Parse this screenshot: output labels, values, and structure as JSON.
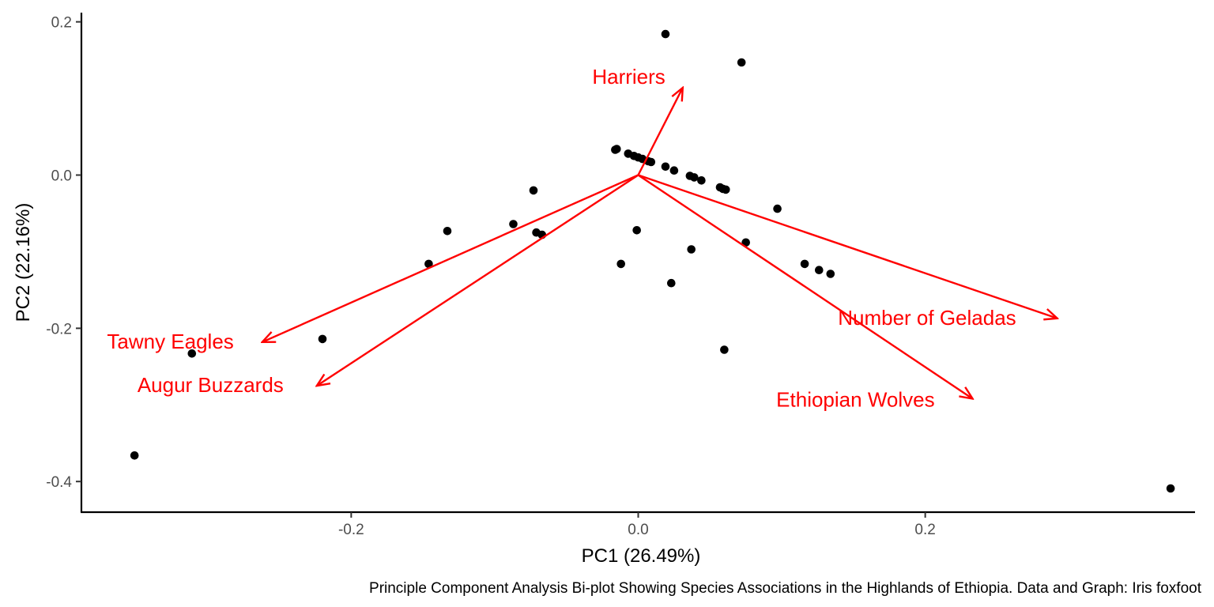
{
  "chart_data": {
    "type": "scatter",
    "title": "",
    "xlabel": "PC1 (26.49%)",
    "ylabel": "PC2 (22.16%)",
    "caption": "Principle Component Analysis Bi-plot Showing Species Associations in the Highlands of Ethiopia. Data and Graph: Iris foxfoot",
    "xlim": [
      -0.388,
      0.388
    ],
    "ylim": [
      -0.44,
      0.212
    ],
    "xticks": [
      -0.2,
      0.0,
      0.2
    ],
    "xtick_labels": [
      "-0.2",
      "0.0",
      "0.2"
    ],
    "yticks": [
      -0.4,
      -0.2,
      0.0,
      0.2
    ],
    "ytick_labels": [
      "-0.4",
      "-0.2",
      "0.0",
      "0.2"
    ],
    "grid": false,
    "legend": "none",
    "point_color": "#000000",
    "vector_color": "#ff0000",
    "points": [
      {
        "x": 0.019,
        "y": 0.184
      },
      {
        "x": 0.072,
        "y": 0.147
      },
      {
        "x": -0.015,
        "y": 0.034
      },
      {
        "x": -0.016,
        "y": 0.033
      },
      {
        "x": -0.007,
        "y": 0.028
      },
      {
        "x": -0.003,
        "y": 0.025
      },
      {
        "x": 0.0,
        "y": 0.023
      },
      {
        "x": 0.003,
        "y": 0.021
      },
      {
        "x": 0.007,
        "y": 0.018
      },
      {
        "x": 0.009,
        "y": 0.017
      },
      {
        "x": 0.019,
        "y": 0.011
      },
      {
        "x": 0.025,
        "y": 0.006
      },
      {
        "x": 0.036,
        "y": -0.001
      },
      {
        "x": 0.039,
        "y": -0.003
      },
      {
        "x": 0.044,
        "y": -0.007
      },
      {
        "x": 0.057,
        "y": -0.016
      },
      {
        "x": 0.059,
        "y": -0.018
      },
      {
        "x": 0.061,
        "y": -0.019
      },
      {
        "x": -0.073,
        "y": -0.02
      },
      {
        "x": 0.097,
        "y": -0.044
      },
      {
        "x": -0.133,
        "y": -0.073
      },
      {
        "x": -0.087,
        "y": -0.064
      },
      {
        "x": -0.071,
        "y": -0.075
      },
      {
        "x": -0.067,
        "y": -0.078
      },
      {
        "x": -0.001,
        "y": -0.072
      },
      {
        "x": 0.075,
        "y": -0.088
      },
      {
        "x": -0.146,
        "y": -0.116
      },
      {
        "x": -0.012,
        "y": -0.116
      },
      {
        "x": 0.037,
        "y": -0.097
      },
      {
        "x": 0.116,
        "y": -0.116
      },
      {
        "x": 0.126,
        "y": -0.124
      },
      {
        "x": 0.134,
        "y": -0.129
      },
      {
        "x": 0.023,
        "y": -0.141
      },
      {
        "x": -0.22,
        "y": -0.214
      },
      {
        "x": 0.06,
        "y": -0.228
      },
      {
        "x": -0.311,
        "y": -0.233
      },
      {
        "x": -0.351,
        "y": -0.366
      },
      {
        "x": 0.371,
        "y": -0.409
      }
    ],
    "vectors": [
      {
        "name": "Harriers",
        "x": 0.031,
        "y": 0.114
      },
      {
        "name": "Number of Geladas",
        "x": 0.292,
        "y": -0.187
      },
      {
        "name": "Ethiopian Wolves",
        "x": 0.233,
        "y": -0.292
      },
      {
        "name": "Tawny Eagles",
        "x": -0.262,
        "y": -0.218
      },
      {
        "name": "Augur Buzzards",
        "x": -0.224,
        "y": -0.275
      }
    ]
  }
}
